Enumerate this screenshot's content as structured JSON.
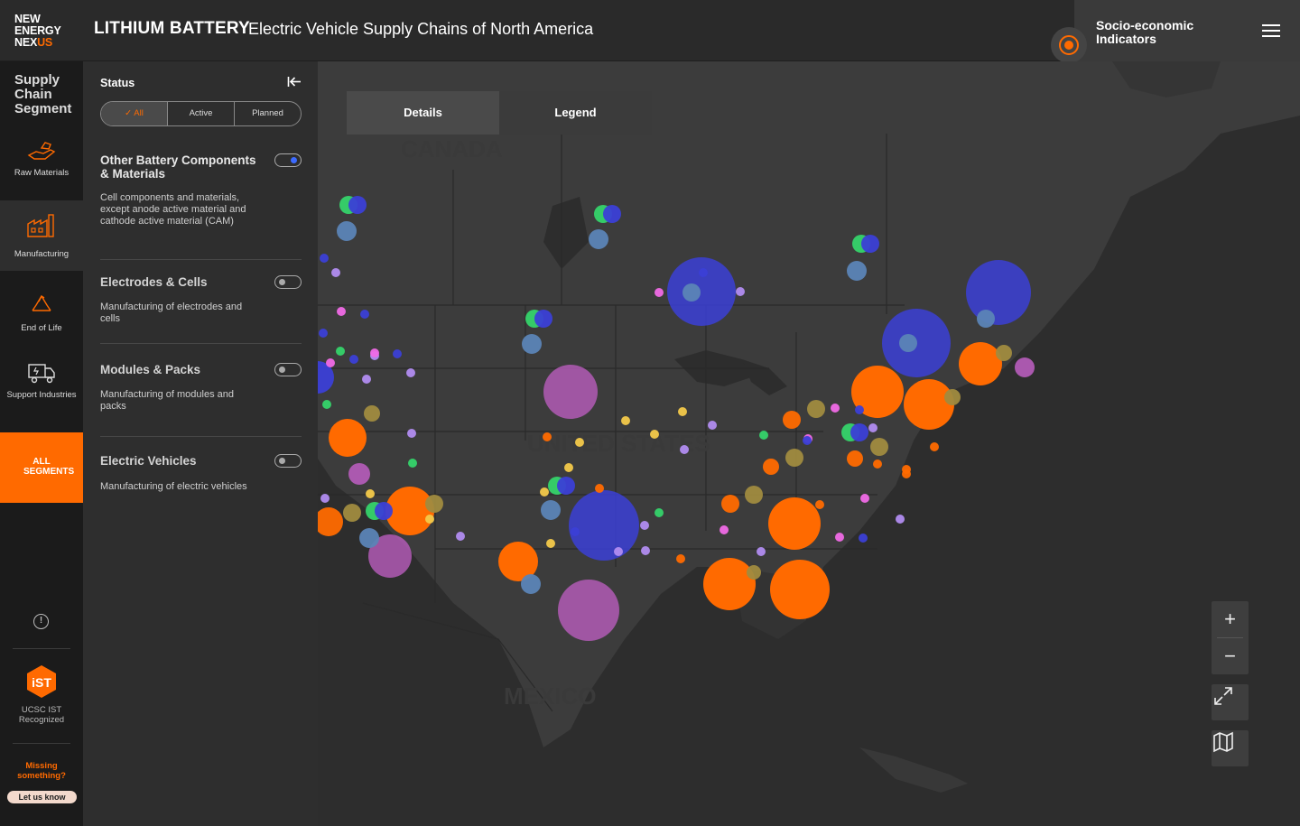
{
  "header": {
    "logo_line1": "NEW",
    "logo_line2": "ENERGY",
    "logo_line3_a": "NEX",
    "logo_line3_b": "US",
    "title": "LITHIUM BATTERY",
    "subtitle": "Electric Vehicle Supply Chains of North America",
    "socio_label": "Socio-economic Indicators",
    "menu_icon": "hamburger-icon",
    "accent_color": "#ff6a00"
  },
  "rail": {
    "title": "Supply Chain Segment",
    "segments": [
      {
        "label": "Raw Materials",
        "icon": "hand-ore-icon"
      },
      {
        "label": "Manufacturing",
        "icon": "factory-icon",
        "active": true
      },
      {
        "label": "End of Life",
        "icon": "recycle-icon"
      },
      {
        "label": "Support Industries",
        "icon": "truck-battery-icon"
      }
    ],
    "all_segments": "ALL SEGMENTS",
    "info_icon": "info-icon",
    "ist_badge": "iST",
    "ist_label": "UCSC IST Recognized",
    "missing": "Missing something?",
    "let_us_know": "Let us know"
  },
  "panel": {
    "status_label": "Status",
    "status_options": [
      "All",
      "Active",
      "Planned"
    ],
    "status_selected": "All",
    "categories": [
      {
        "title": "Other Battery Components & Materials",
        "desc": "Cell components and materials, except anode active material and cathode active material (CAM)",
        "enabled": true
      },
      {
        "title": "Electrodes & Cells",
        "desc": "Manufacturing of electrodes and cells",
        "enabled": false
      },
      {
        "title": "Modules & Packs",
        "desc": "Manufacturing of modules and packs",
        "enabled": false
      },
      {
        "title": "Electric Vehicles",
        "desc": "Manufacturing of electric vehicles",
        "enabled": false
      }
    ]
  },
  "map": {
    "tabs": [
      "Details",
      "Legend"
    ],
    "active_tab": "Details",
    "country_labels": [
      "CANADA",
      "UNITED STATES",
      "MEXICO"
    ],
    "controls": [
      "zoom-in",
      "zoom-out",
      "fullscreen",
      "basemap"
    ]
  }
}
